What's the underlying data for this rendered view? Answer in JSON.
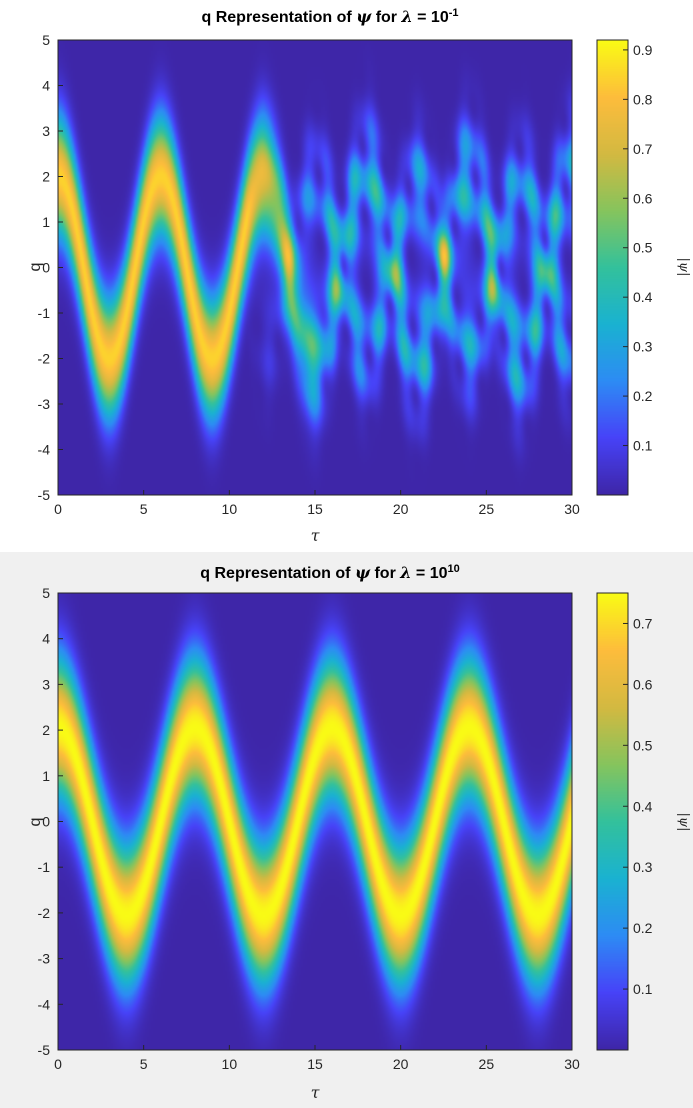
{
  "chart_data": [
    {
      "type": "heatmap",
      "title": {
        "text": "q Representation of ",
        "sym": "ψ",
        "mid": " for ",
        "lam": "λ",
        "eq": " = 10",
        "exp": "-1"
      },
      "xlabel": "τ",
      "ylabel": "q",
      "colorbar_label": "|ψ|",
      "xlim": [
        0,
        30
      ],
      "ylim": [
        -5,
        5
      ],
      "xticks": [
        0,
        5,
        10,
        15,
        20,
        25,
        30
      ],
      "yticks": [
        -5,
        -4,
        -3,
        -2,
        -1,
        0,
        1,
        2,
        3,
        4,
        5
      ],
      "clim": [
        0,
        0.92
      ],
      "colorbar_ticks": [
        0.1,
        0.2,
        0.3,
        0.4,
        0.5,
        0.6,
        0.7,
        0.8,
        0.9
      ],
      "colormap": [
        "#3e26a8",
        "#4743f8",
        "#2d8cf4",
        "#1ab2d1",
        "#33c19c",
        "#86c45d",
        "#d3b941",
        "#fdbc3c",
        "#f9fb15"
      ],
      "wave": {
        "amplitude": 2.0,
        "period": 6.0,
        "phase": 0.25,
        "width": 0.9
      }
    },
    {
      "type": "heatmap",
      "title": {
        "text": "q Representation of ",
        "sym": "ψ",
        "mid": " for ",
        "lam": "λ",
        "eq": " = 10",
        "exp": "10"
      },
      "xlabel": "τ",
      "ylabel": "q",
      "colorbar_label": "|ψ|",
      "xlim": [
        0,
        30
      ],
      "ylim": [
        -5,
        5
      ],
      "xticks": [
        0,
        5,
        10,
        15,
        20,
        25,
        30
      ],
      "yticks": [
        -5,
        -4,
        -3,
        -2,
        -1,
        0,
        1,
        2,
        3,
        4,
        5
      ],
      "clim": [
        0,
        0.75
      ],
      "colorbar_ticks": [
        0.1,
        0.2,
        0.3,
        0.4,
        0.5,
        0.6,
        0.7
      ],
      "colormap": [
        "#3e26a8",
        "#4743f8",
        "#2d8cf4",
        "#1ab2d1",
        "#33c19c",
        "#86c45d",
        "#d3b941",
        "#fdbc3c",
        "#f9fb15"
      ],
      "wave": {
        "amplitude": 2.05,
        "period": 8.0,
        "phase": 0.25,
        "width": 1.05
      }
    }
  ]
}
